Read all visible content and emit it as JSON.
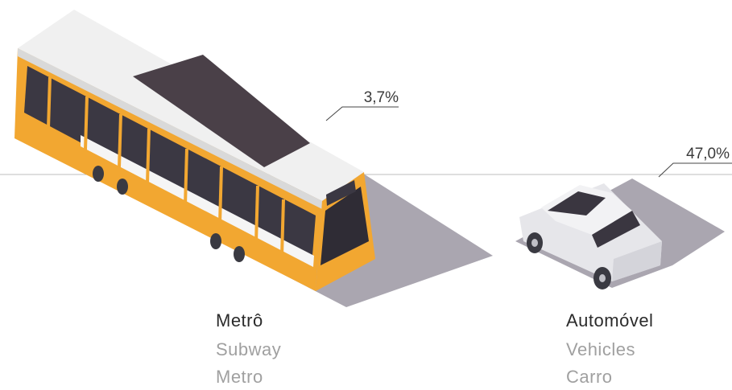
{
  "items": [
    {
      "percent": "3,7%",
      "name": "Metrô",
      "english": "Subway",
      "spanish": "Metro"
    },
    {
      "percent": "47,0%",
      "name": "Automóvel",
      "english": "Vehicles",
      "spanish": "Carro"
    }
  ]
}
